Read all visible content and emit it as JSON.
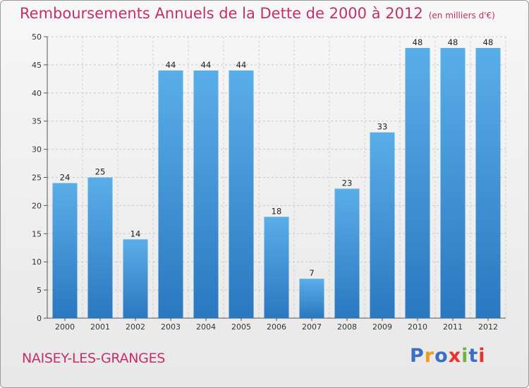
{
  "chart_data": {
    "type": "bar",
    "title": "Remboursements Annuels de la Dette de 2000 à 2012",
    "subtitle": "(en milliers d'€)",
    "categories": [
      "2000",
      "2001",
      "2002",
      "2003",
      "2004",
      "2005",
      "2006",
      "2007",
      "2008",
      "2009",
      "2010",
      "2011",
      "2012"
    ],
    "values": [
      24,
      25,
      14,
      44,
      44,
      44,
      18,
      7,
      23,
      33,
      48,
      48,
      48
    ],
    "ylim": [
      0,
      50
    ],
    "yticks": [
      0,
      5,
      10,
      15,
      20,
      25,
      30,
      35,
      40,
      45,
      50
    ],
    "xlabel": "",
    "ylabel": "",
    "grid": true,
    "bar_color": "#3f8fd6"
  },
  "footer": {
    "commune": "NAISEY-LES-GRANGES",
    "brand_letters": [
      {
        "ch": "P",
        "color": "#3a6fc4"
      },
      {
        "ch": "r",
        "color": "#f29a1f"
      },
      {
        "ch": "o",
        "color": "#3a6fc4"
      },
      {
        "ch": "x",
        "color": "#e8322b"
      },
      {
        "ch": "i",
        "color": "#6cb33f"
      },
      {
        "ch": "t",
        "color": "#3a6fc4"
      },
      {
        "ch": "i",
        "color": "#e8322b"
      }
    ]
  }
}
